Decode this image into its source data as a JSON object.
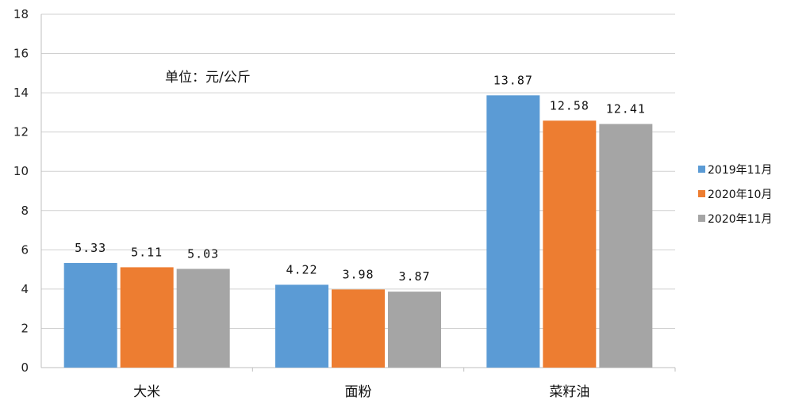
{
  "chart_data": {
    "type": "bar",
    "title": "",
    "note": "单位：元/公斤",
    "xlabel": "",
    "ylabel": "",
    "categories": [
      "大米",
      "面粉",
      "菜籽油"
    ],
    "series": [
      {
        "name": "2019年11月",
        "color": "#5B9BD5",
        "values": [
          5.33,
          4.22,
          13.87
        ]
      },
      {
        "name": "2020年10月",
        "color": "#ED7D31",
        "values": [
          5.11,
          3.98,
          12.58
        ]
      },
      {
        "name": "2020年11月",
        "color": "#A5A5A5",
        "values": [
          5.03,
          3.87,
          12.41
        ]
      }
    ],
    "ylim": [
      0,
      18
    ],
    "yticks": [
      0,
      2,
      4,
      6,
      8,
      10,
      12,
      14,
      16,
      18
    ],
    "grid": true,
    "legend_position": "right"
  }
}
